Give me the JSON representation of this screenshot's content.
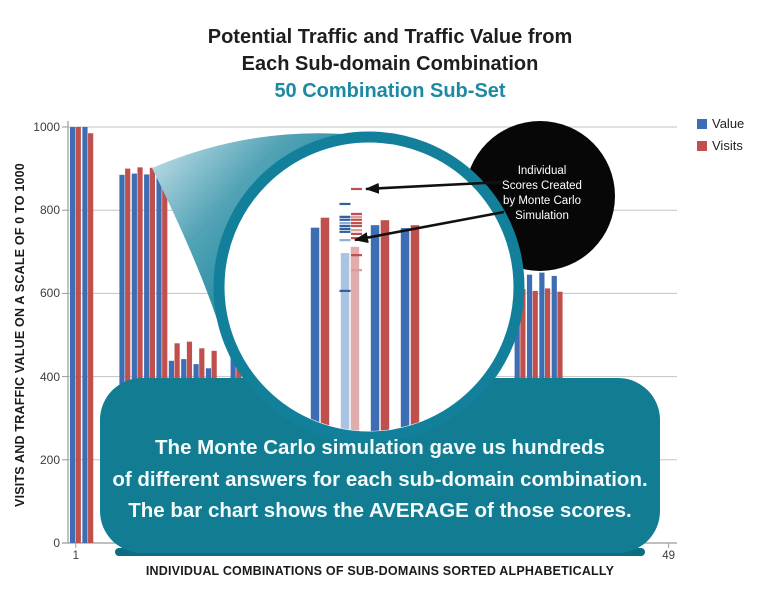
{
  "page": {
    "title_line1": "Potential Traffic and Traffic Value from",
    "title_line2": "Each Sub-domain Combination",
    "subtitle": "50 Combination Sub-Set"
  },
  "callout_bubble": {
    "line1": "Individual",
    "line2": "Scores Created",
    "line3": "by Monte Carlo",
    "line4": "Simulation"
  },
  "note_box": {
    "line1": "The Monte Carlo simulation gave us hundreds",
    "line2": "of different answers for each sub-domain combination.",
    "line3": "The bar chart shows the AVERAGE of those scores."
  },
  "colors": {
    "value_bar": "#3d6db2",
    "visits_bar": "#bf504d",
    "value_bar_light": "#a9c3e2",
    "visits_bar_light": "#e0acac",
    "value_tick": "#31609a",
    "value_tick_light": "#8fafd6",
    "visits_tick": "#c0504d",
    "visits_tick_light": "#dc9b9b",
    "teal": "#12809a",
    "teal_dark": "#0d6c82",
    "bubble_black": "#070707",
    "gridline": "#c3c3c3",
    "axis": "#9a9a9a"
  },
  "chart_data": {
    "type": "bar",
    "title": "Potential Traffic and Traffic Value from Each Sub-domain Combination",
    "subtitle": "50 Combination Sub-Set",
    "xlabel": "INDIVIDUAL COMBINATIONS OF SUB-DOMAINS SORTED ALPHABETICALLY",
    "ylabel": "VISITS AND TRAFFIC VALUE ON A SCALE OF 0 TO 1000",
    "ylim": [
      0,
      1000
    ],
    "yticks": [
      0,
      200,
      400,
      600,
      800,
      1000
    ],
    "xticks": [
      {
        "label": "1",
        "slot": 0
      },
      {
        "label": "49",
        "slot": 48
      }
    ],
    "legend": [
      {
        "name": "Value",
        "color": "#3d6db2"
      },
      {
        "name": "Visits",
        "color": "#bf504d"
      }
    ],
    "legend_position": "top-right",
    "grid": true,
    "slots": [
      0,
      1,
      4,
      5,
      6,
      7,
      8,
      9,
      10,
      11,
      13,
      14,
      15,
      16,
      36,
      37,
      38,
      39
    ],
    "series": [
      {
        "name": "Value",
        "values": [
          1000,
          1000,
          885,
          888,
          886,
          888,
          438,
          442,
          430,
          420,
          758,
          697,
          764,
          757,
          648,
          645,
          650,
          642
        ]
      },
      {
        "name": "Visits",
        "values": [
          1000,
          985,
          900,
          903,
          902,
          904,
          480,
          484,
          468,
          462,
          782,
          712,
          776,
          764,
          610,
          606,
          612,
          604
        ]
      }
    ],
    "magnifier": {
      "pairs": [
        {
          "value": 758,
          "visits": 782,
          "style": "solid"
        },
        {
          "value": 697,
          "visits": 712,
          "style": "light"
        },
        {
          "value": 764,
          "visits": 776,
          "style": "solid"
        },
        {
          "value": 757,
          "visits": 764,
          "style": "solid"
        }
      ],
      "value_scores": [
        815,
        784,
        777,
        769,
        762,
        755,
        748,
        728,
        606
      ],
      "visits_scores": [
        851,
        791,
        784,
        777,
        769,
        762,
        752,
        743,
        733,
        692,
        656
      ]
    }
  }
}
